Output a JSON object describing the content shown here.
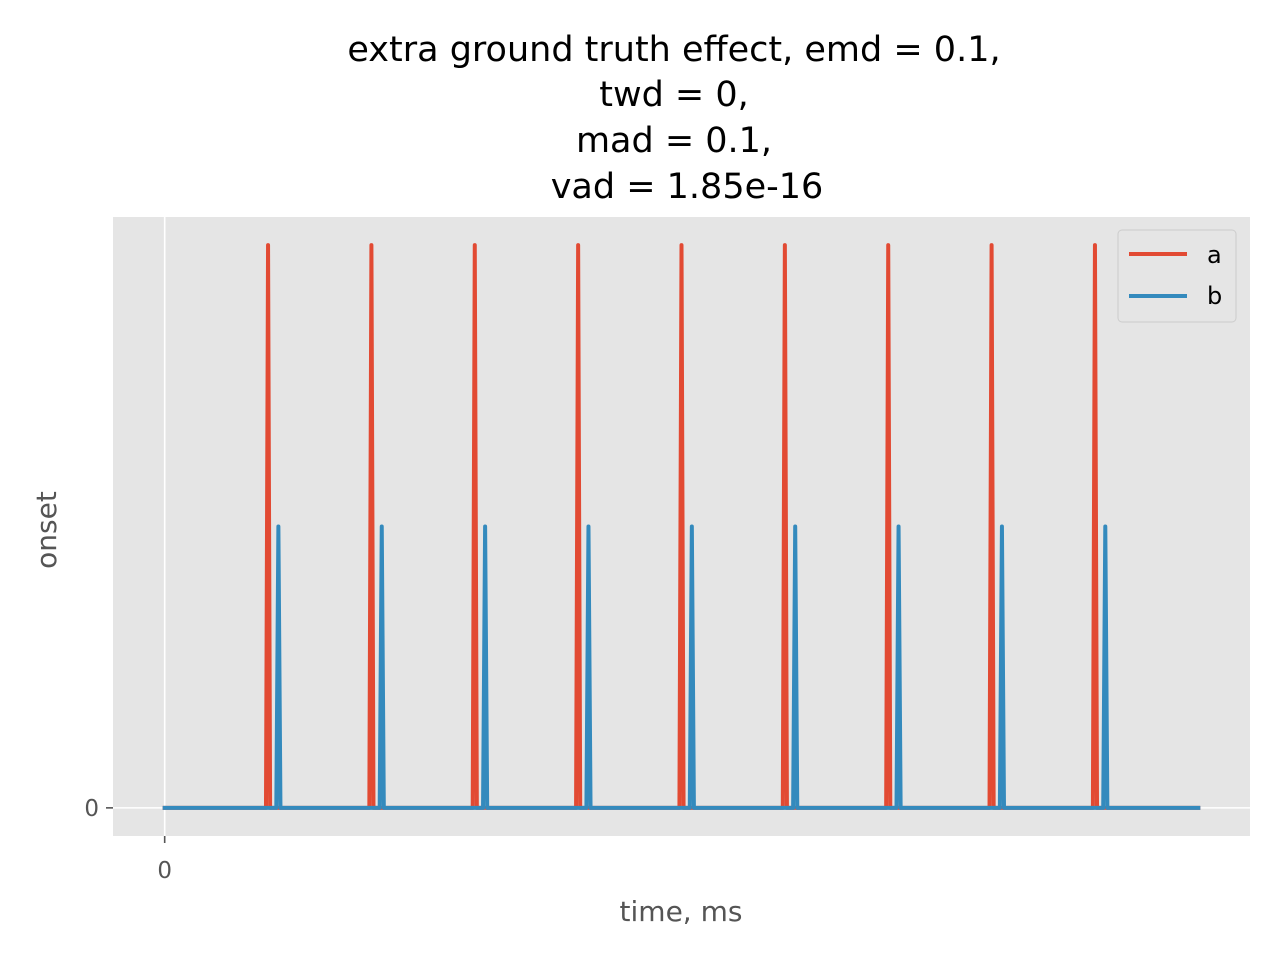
{
  "chart_data": {
    "type": "line",
    "title_lines": [
      "extra ground truth effect, emd = 0.1,",
      "twd = 0,",
      "mad = 0.1,",
      "vad = 1.85e-16"
    ],
    "xlabel": "time, ms",
    "ylabel": "onset",
    "x_ticks": [
      {
        "value": 0,
        "label": "0"
      }
    ],
    "y_ticks": [
      {
        "value": 0,
        "label": "0"
      }
    ],
    "xlim": [
      -0.5,
      10.5
    ],
    "ylim": [
      -0.05,
      1.05
    ],
    "grid": true,
    "legend_position": "top-right",
    "series": [
      {
        "name": "a",
        "color": "#E24A33",
        "x": [
          0,
          0.98,
          1.0,
          1.02,
          1.98,
          2.0,
          2.02,
          2.98,
          3.0,
          3.02,
          3.98,
          4.0,
          4.02,
          4.98,
          5.0,
          5.02,
          5.98,
          6.0,
          6.02,
          6.98,
          7.0,
          7.02,
          7.98,
          8.0,
          8.02,
          8.98,
          9.0,
          9.02,
          10.0
        ],
        "y": [
          0,
          0,
          1,
          0,
          0,
          1,
          0,
          0,
          1,
          0,
          0,
          1,
          0,
          0,
          1,
          0,
          0,
          1,
          0,
          0,
          1,
          0,
          0,
          1,
          0,
          0,
          1,
          0,
          0
        ]
      },
      {
        "name": "b",
        "color": "#348ABD",
        "x": [
          0,
          1.08,
          1.1,
          1.12,
          2.08,
          2.1,
          2.12,
          3.08,
          3.1,
          3.12,
          4.08,
          4.1,
          4.12,
          5.08,
          5.1,
          5.12,
          6.08,
          6.1,
          6.12,
          7.08,
          7.1,
          7.12,
          8.08,
          8.1,
          8.12,
          9.08,
          9.1,
          9.12,
          10.0
        ],
        "y": [
          0,
          0,
          0.5,
          0,
          0,
          0.5,
          0,
          0,
          0.5,
          0,
          0,
          0.5,
          0,
          0,
          0.5,
          0,
          0,
          0.5,
          0,
          0,
          0.5,
          0,
          0,
          0.5,
          0,
          0,
          0.5,
          0,
          0
        ]
      }
    ]
  }
}
